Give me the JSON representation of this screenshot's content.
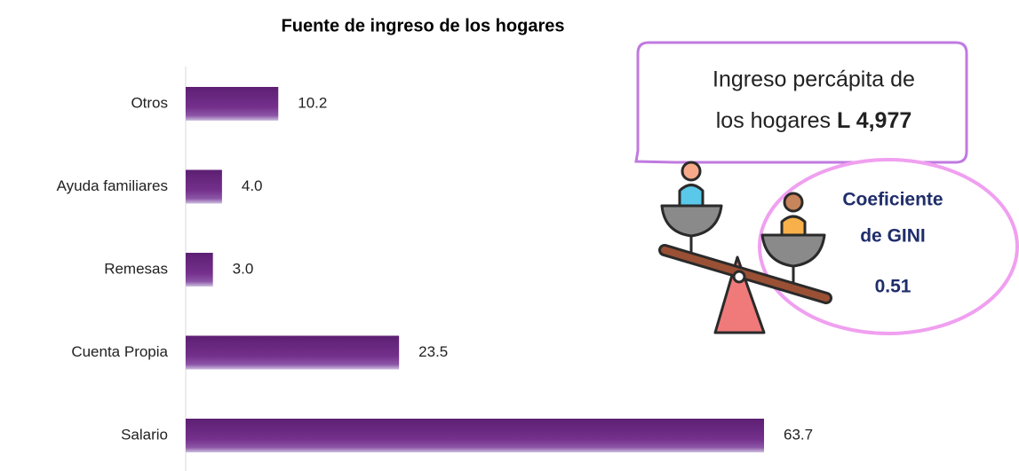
{
  "chart_data": {
    "type": "bar",
    "orientation": "horizontal",
    "title": "Fuente de ingreso de los hogares",
    "categories": [
      "Otros",
      "Ayuda familiares",
      "Remesas",
      "Cuenta Propia",
      "Salario"
    ],
    "values": [
      10.2,
      4.0,
      3.0,
      23.5,
      63.7
    ],
    "value_labels": [
      "10.2",
      "4.0",
      "3.0",
      "23.5",
      "63.7"
    ],
    "color": "#6a2580",
    "annotations": {
      "income": {
        "line1": "Ingreso percápita de",
        "line2": "los hogares",
        "amount": "L 4,977"
      },
      "gini": {
        "line1": "Coeficiente",
        "line2": "de GINI",
        "value": "0.51"
      }
    }
  }
}
